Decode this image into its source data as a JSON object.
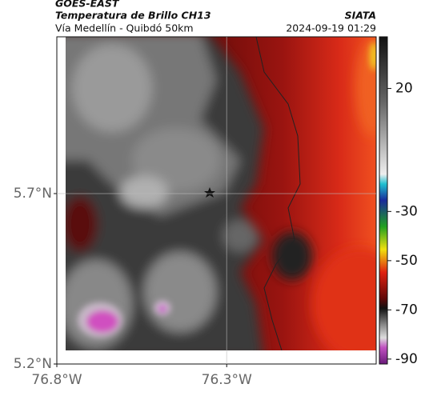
{
  "header": {
    "source": "GOES-EAST",
    "title": "Temperatura de Brillo CH13",
    "agency": "SIATA",
    "subtitle": "Vía Medellín - Quibdó 50km",
    "datetime": "2024-09-19 01:29"
  },
  "map": {
    "lat_lim": [
      5.2,
      6.16
    ],
    "lon_lim": [
      -76.8,
      -75.86
    ],
    "lat_ticks": [
      {
        "value": 5.7,
        "label": "5.7°N"
      },
      {
        "value": 5.2,
        "label": "5.2°N"
      }
    ],
    "lon_ticks": [
      {
        "value": -76.8,
        "label": "76.8°W"
      },
      {
        "value": -76.3,
        "label": "76.3°W"
      }
    ],
    "grid": true
  },
  "colorbar": {
    "lim": [
      -92,
      41
    ],
    "ticks": [
      20,
      -30,
      -50,
      -70,
      -90
    ]
  }
}
